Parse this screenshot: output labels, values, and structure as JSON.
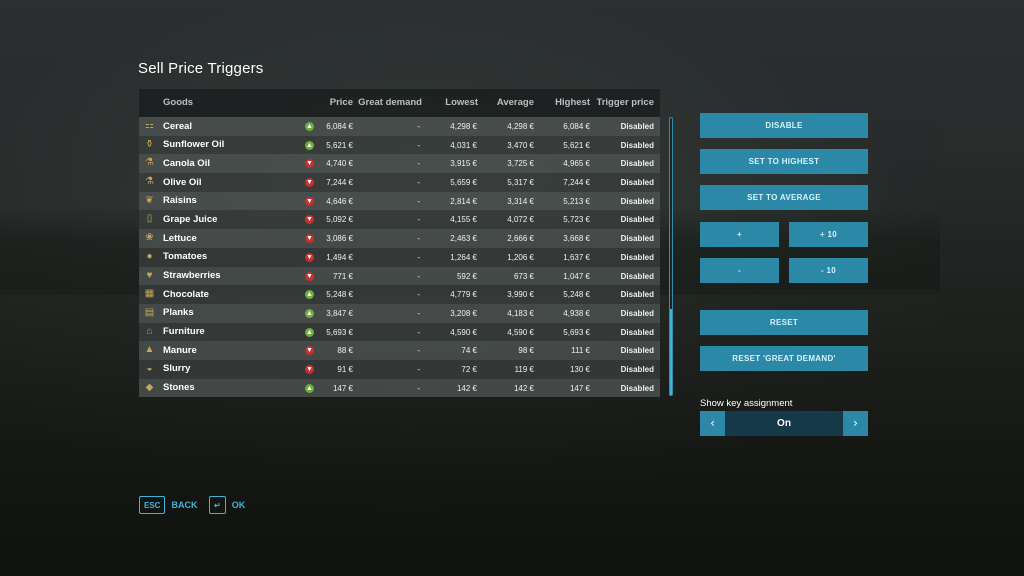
{
  "title": "Sell Price Triggers",
  "columns": {
    "goods": "Goods",
    "price": "Price",
    "great_demand": "Great demand",
    "lowest": "Lowest",
    "average": "Average",
    "highest": "Highest",
    "trigger_price": "Trigger price"
  },
  "rows": [
    {
      "name": "Cereal",
      "icon": "cereal-icon",
      "trend": "up",
      "trend_glyph": "▲",
      "price": "6,084 €",
      "great_demand": "-",
      "lowest": "4,298 €",
      "average": "4,298 €",
      "highest": "6,084 €",
      "trigger": "Disabled"
    },
    {
      "name": "Sunflower Oil",
      "icon": "sunflower-oil-icon",
      "trend": "up",
      "trend_glyph": "▲",
      "price": "5,621 €",
      "great_demand": "-",
      "lowest": "4,031 €",
      "average": "3,470 €",
      "highest": "5,621 €",
      "trigger": "Disabled"
    },
    {
      "name": "Canola Oil",
      "icon": "canola-oil-icon",
      "trend": "down",
      "trend_glyph": "▼",
      "price": "4,740 €",
      "great_demand": "-",
      "lowest": "3,915 €",
      "average": "3,725 €",
      "highest": "4,965 €",
      "trigger": "Disabled"
    },
    {
      "name": "Olive Oil",
      "icon": "olive-oil-icon",
      "trend": "down",
      "trend_glyph": "▼",
      "price": "7,244 €",
      "great_demand": "-",
      "lowest": "5,659 €",
      "average": "5,317 €",
      "highest": "7,244 €",
      "trigger": "Disabled"
    },
    {
      "name": "Raisins",
      "icon": "raisins-icon",
      "trend": "down",
      "trend_glyph": "▼",
      "price": "4,646 €",
      "great_demand": "-",
      "lowest": "2,814 €",
      "average": "3,314 €",
      "highest": "5,213 €",
      "trigger": "Disabled"
    },
    {
      "name": "Grape Juice",
      "icon": "grape-juice-icon",
      "trend": "down",
      "trend_glyph": "▼",
      "price": "5,092 €",
      "great_demand": "-",
      "lowest": "4,155 €",
      "average": "4,072 €",
      "highest": "5,723 €",
      "trigger": "Disabled"
    },
    {
      "name": "Lettuce",
      "icon": "lettuce-icon",
      "trend": "down",
      "trend_glyph": "▼",
      "price": "3,086 €",
      "great_demand": "-",
      "lowest": "2,463 €",
      "average": "2,666 €",
      "highest": "3,668 €",
      "trigger": "Disabled"
    },
    {
      "name": "Tomatoes",
      "icon": "tomatoes-icon",
      "trend": "down",
      "trend_glyph": "▼",
      "price": "1,494 €",
      "great_demand": "-",
      "lowest": "1,264 €",
      "average": "1,206 €",
      "highest": "1,637 €",
      "trigger": "Disabled"
    },
    {
      "name": "Strawberries",
      "icon": "strawberries-icon",
      "trend": "down",
      "trend_glyph": "▼",
      "price": "771 €",
      "great_demand": "-",
      "lowest": "592 €",
      "average": "673 €",
      "highest": "1,047 €",
      "trigger": "Disabled"
    },
    {
      "name": "Chocolate",
      "icon": "chocolate-icon",
      "trend": "up",
      "trend_glyph": "▲",
      "price": "5,248 €",
      "great_demand": "-",
      "lowest": "4,779 €",
      "average": "3,990 €",
      "highest": "5,248 €",
      "trigger": "Disabled"
    },
    {
      "name": "Planks",
      "icon": "planks-icon",
      "trend": "up",
      "trend_glyph": "▲",
      "price": "3,847 €",
      "great_demand": "-",
      "lowest": "3,208 €",
      "average": "4,183 €",
      "highest": "4,938 €",
      "trigger": "Disabled"
    },
    {
      "name": "Furniture",
      "icon": "furniture-icon",
      "trend": "up",
      "trend_glyph": "▲",
      "price": "5,693 €",
      "great_demand": "-",
      "lowest": "4,590 €",
      "average": "4,590 €",
      "highest": "5,693 €",
      "trigger": "Disabled"
    },
    {
      "name": "Manure",
      "icon": "manure-icon",
      "trend": "down",
      "trend_glyph": "▼",
      "price": "88 €",
      "great_demand": "-",
      "lowest": "74 €",
      "average": "98 €",
      "highest": "111 €",
      "trigger": "Disabled"
    },
    {
      "name": "Slurry",
      "icon": "slurry-icon",
      "trend": "down",
      "trend_glyph": "▼",
      "price": "91 €",
      "great_demand": "-",
      "lowest": "72 €",
      "average": "119 €",
      "highest": "130 €",
      "trigger": "Disabled"
    },
    {
      "name": "Stones",
      "icon": "stones-icon",
      "trend": "up",
      "trend_glyph": "▲",
      "price": "147 €",
      "great_demand": "-",
      "lowest": "142 €",
      "average": "142 €",
      "highest": "147 €",
      "trigger": "Disabled"
    }
  ],
  "buttons": {
    "disable": "DISABLE",
    "set_to_highest": "SET TO HIGHEST",
    "set_to_average": "SET TO AVERAGE",
    "plus": "+",
    "plus_ten": "+ 10",
    "minus": "-",
    "minus_ten": "- 10",
    "reset": "RESET",
    "reset_great_demand": "RESET 'GREAT DEMAND'"
  },
  "key_assignment": {
    "label": "Show key assignment",
    "value": "On",
    "prev_glyph": "‹",
    "next_glyph": "›"
  },
  "footer": {
    "back_key": "ESC",
    "back_label": "BACK",
    "ok_key": "↵",
    "ok_label": "OK"
  },
  "colors": {
    "accent": "#2b89a7",
    "accent_text": "#3fb4d6",
    "trend_up": "#6fae3e",
    "trend_down": "#c8302c"
  }
}
